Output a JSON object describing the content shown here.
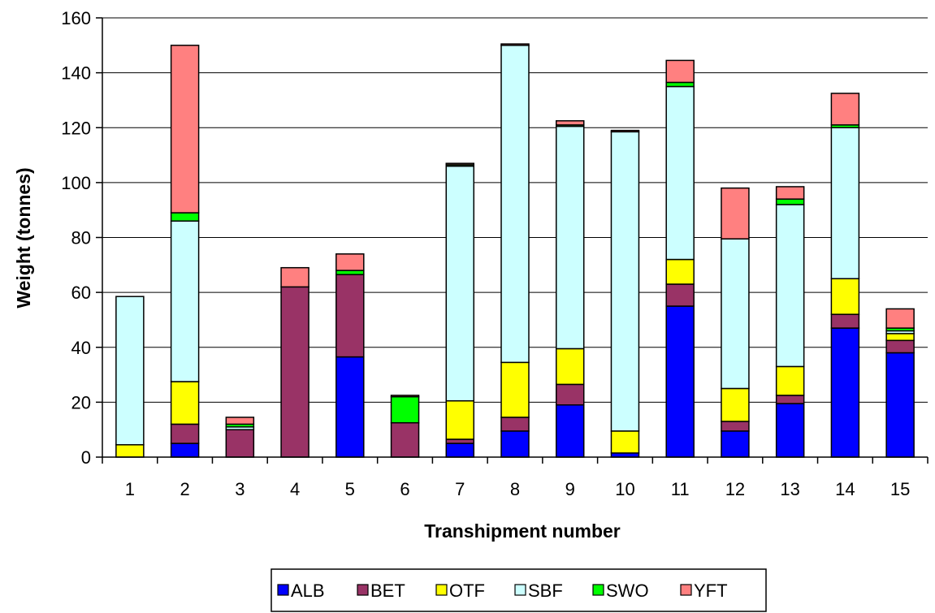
{
  "chart_data": {
    "type": "bar",
    "stacked": true,
    "title": "",
    "xlabel": "Transhipment number",
    "ylabel": "Weight (tonnes)",
    "ylim": [
      0,
      160
    ],
    "yticks": [
      0,
      20,
      40,
      60,
      80,
      100,
      120,
      140,
      160
    ],
    "grid": "horizontal",
    "legend_position": "bottom",
    "categories": [
      "1",
      "2",
      "3",
      "4",
      "5",
      "6",
      "7",
      "8",
      "9",
      "10",
      "11",
      "12",
      "13",
      "14",
      "15"
    ],
    "series": [
      {
        "name": "ALB",
        "color": "#0000ff",
        "values": [
          0,
          5,
          0,
          0,
          36.5,
          0,
          5,
          9.5,
          19,
          1.5,
          55,
          9.5,
          19.5,
          47,
          38
        ]
      },
      {
        "name": "BET",
        "color": "#993366",
        "values": [
          0,
          7,
          10,
          62,
          30,
          12.5,
          1.5,
          5,
          7.5,
          0,
          8,
          3.5,
          3,
          5,
          4.5
        ]
      },
      {
        "name": "OTF",
        "color": "#ffff00",
        "values": [
          4.5,
          15.5,
          0,
          0,
          0,
          0,
          14,
          20,
          13,
          8,
          9,
          12,
          10.5,
          13,
          2.5
        ]
      },
      {
        "name": "SBF",
        "color": "#ccffff",
        "values": [
          54,
          58.5,
          1,
          0,
          0,
          0,
          85.5,
          115.5,
          81,
          109,
          63,
          54.5,
          59,
          55,
          1
        ]
      },
      {
        "name": "SWO",
        "color": "#00ff00",
        "values": [
          0,
          3,
          1,
          0,
          1.5,
          9.5,
          0.5,
          0,
          0.5,
          0,
          1.5,
          0,
          2,
          1,
          1
        ]
      },
      {
        "name": "YFT",
        "color": "#ff8080",
        "values": [
          0,
          61,
          2.5,
          7,
          6,
          0.5,
          0.5,
          0.5,
          1.5,
          0.5,
          8,
          18.5,
          4.5,
          11.5,
          7
        ]
      }
    ]
  }
}
